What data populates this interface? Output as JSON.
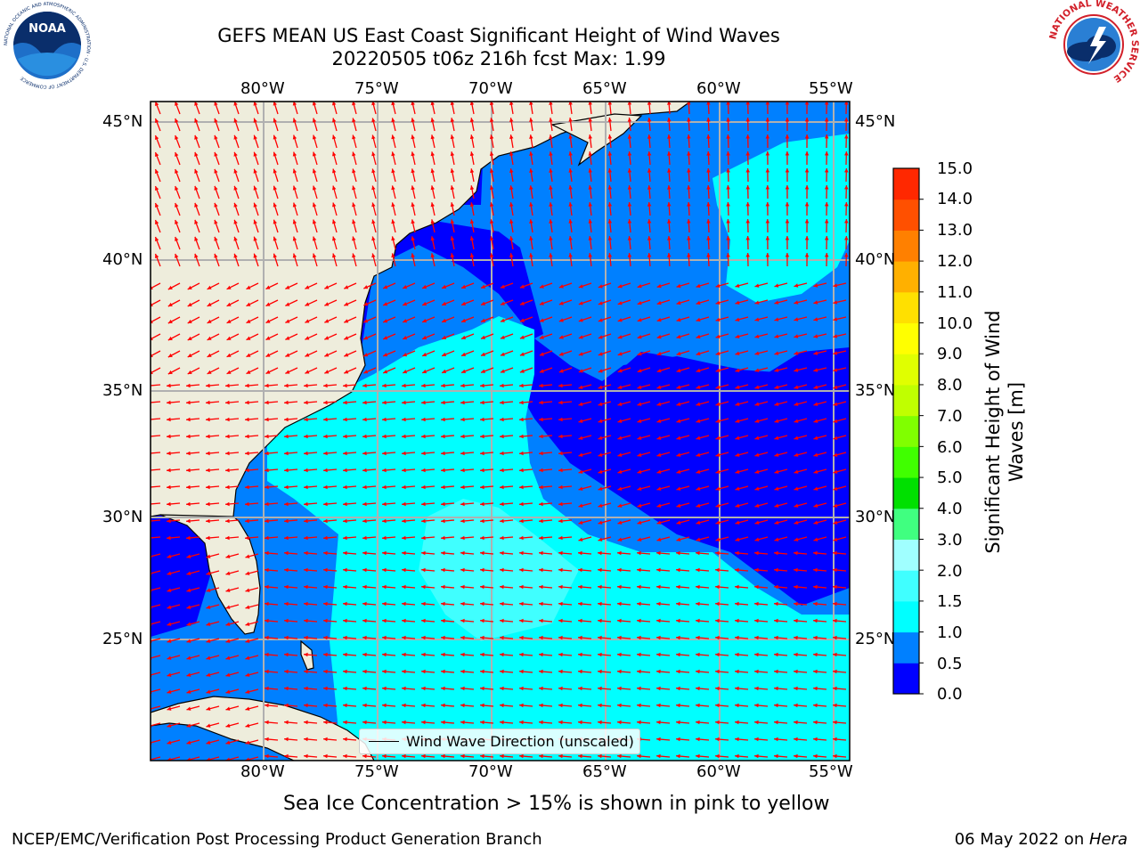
{
  "header": {
    "title_line1": "GEFS MEAN US East Coast Significant Height of Wind Waves",
    "title_line2": "20220505 t06z 216h fcst   Max: 1.99"
  },
  "logos": {
    "left": {
      "name": "noaa-logo",
      "text": "NOAA",
      "ring_text": "NATIONAL OCEANIC AND ATMOSPHERIC ADMINISTRATION · U.S. DEPARTMENT OF COMMERCE"
    },
    "right": {
      "name": "nws-logo",
      "ring_text": "NATIONAL WEATHER SERVICE"
    }
  },
  "map": {
    "longitude_labels": [
      "80°W",
      "75°W",
      "70°W",
      "65°W",
      "60°W",
      "55°W"
    ],
    "latitude_labels": [
      "45°N",
      "40°N",
      "35°N",
      "30°N",
      "25°N"
    ],
    "legend_label": "Wind Wave Direction (unscaled)",
    "colors": {
      "land": "#eeeddc",
      "coast": "#000000",
      "grid": "#b0b0b0",
      "arrow": "#ff0000"
    }
  },
  "colorbar": {
    "title": "Significant Height of Wind Waves [m]",
    "tick_labels": [
      "0.0",
      "0.5",
      "1.0",
      "1.5",
      "2.0",
      "3.0",
      "4.0",
      "5.0",
      "6.0",
      "7.0",
      "8.0",
      "9.0",
      "10.0",
      "11.0",
      "12.0",
      "13.0",
      "14.0",
      "15.0"
    ],
    "colors": [
      "#0000ff",
      "#0080ff",
      "#00ffff",
      "#40ffff",
      "#a0ffff",
      "#40ff80",
      "#00e000",
      "#40ff00",
      "#80ff00",
      "#c0ff00",
      "#e0ff00",
      "#ffff00",
      "#ffe000",
      "#ffb000",
      "#ff8000",
      "#ff5000",
      "#ff2800",
      "#ff0000"
    ]
  },
  "footer": {
    "subtitle": "Sea Ice Concentration > 15% is shown in pink to yellow",
    "left": "NCEP/EMC/Verification Post Processing Product Generation Branch",
    "right_date": "06 May 2022 on ",
    "right_host": "Hera"
  }
}
